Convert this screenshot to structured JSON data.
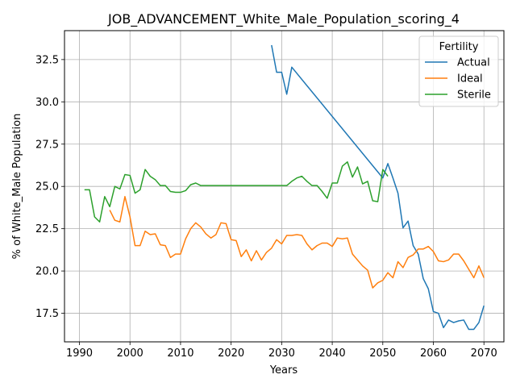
{
  "chart_data": {
    "type": "line",
    "title": "JOB_ADVANCEMENT_White_Male_Population_scoring_4",
    "xlabel": "Years",
    "ylabel": "% of White_Male Population",
    "xlim": [
      1987.05,
      2073.95
    ],
    "ylim": [
      15.81,
      34.21
    ],
    "xticks": [
      1990,
      2000,
      2010,
      2020,
      2030,
      2040,
      2050,
      2060,
      2070
    ],
    "xtick_labels": [
      "1990",
      "2000",
      "2010",
      "2020",
      "2030",
      "2040",
      "2050",
      "2060",
      "2070"
    ],
    "yticks": [
      17.5,
      20.0,
      22.5,
      25.0,
      27.5,
      30.0,
      32.5
    ],
    "ytick_labels": [
      "17.5",
      "20.0",
      "22.5",
      "25.0",
      "27.5",
      "30.0",
      "32.5"
    ],
    "grid": true,
    "legend": {
      "title": "Fertility",
      "position": "top-right"
    },
    "series": [
      {
        "name": "Actual",
        "color": "#1f77b4",
        "x": [
          2028,
          2029,
          2030,
          2031,
          2032,
          2050,
          2051,
          2052,
          2053,
          2054,
          2055,
          2056,
          2057,
          2058,
          2059,
          2060,
          2061,
          2062,
          2063,
          2064,
          2065,
          2066,
          2067,
          2068,
          2069,
          2070
        ],
        "y": [
          33.35,
          31.75,
          31.75,
          30.45,
          32.05,
          25.5,
          26.35,
          25.5,
          24.6,
          22.55,
          22.95,
          21.5,
          21.0,
          19.55,
          18.95,
          17.6,
          17.5,
          16.65,
          17.1,
          16.95,
          17.05,
          17.1,
          16.55,
          16.55,
          16.95,
          17.95
        ]
      },
      {
        "name": "Ideal",
        "color": "#ff7f0e",
        "x": [
          1996,
          1997,
          1998,
          1999,
          2000,
          2001,
          2002,
          2003,
          2004,
          2005,
          2006,
          2007,
          2008,
          2009,
          2010,
          2011,
          2012,
          2013,
          2014,
          2015,
          2016,
          2017,
          2018,
          2019,
          2020,
          2021,
          2022,
          2023,
          2024,
          2025,
          2026,
          2027,
          2028,
          2029,
          2030,
          2031,
          2032,
          2033,
          2034,
          2035,
          2036,
          2037,
          2038,
          2039,
          2040,
          2041,
          2042,
          2043,
          2044,
          2045,
          2046,
          2047,
          2048,
          2049,
          2050,
          2051,
          2052,
          2053,
          2054,
          2055,
          2056,
          2057,
          2058,
          2059,
          2060,
          2061,
          2062,
          2063,
          2064,
          2065,
          2066,
          2067,
          2068,
          2069,
          2070
        ],
        "y": [
          23.6,
          23.0,
          22.9,
          24.4,
          23.2,
          21.5,
          21.5,
          22.35,
          22.15,
          22.2,
          21.55,
          21.5,
          20.8,
          21.0,
          21.0,
          21.9,
          22.5,
          22.85,
          22.6,
          22.2,
          21.95,
          22.15,
          22.85,
          22.8,
          21.85,
          21.8,
          20.85,
          21.25,
          20.6,
          21.2,
          20.65,
          21.1,
          21.35,
          21.85,
          21.6,
          22.1,
          22.1,
          22.15,
          22.1,
          21.6,
          21.25,
          21.5,
          21.65,
          21.65,
          21.45,
          21.95,
          21.9,
          21.95,
          21.0,
          20.65,
          20.3,
          20.05,
          19.0,
          19.3,
          19.45,
          19.9,
          19.6,
          20.55,
          20.2,
          20.8,
          20.95,
          21.3,
          21.3,
          21.45,
          21.15,
          20.6,
          20.55,
          20.65,
          21.0,
          21.0,
          20.6,
          20.1,
          19.6,
          20.3,
          19.6
        ]
      },
      {
        "name": "Sterile",
        "color": "#2ca02c",
        "x": [
          1991,
          1992,
          1993,
          1994,
          1995,
          1996,
          1997,
          1998,
          1999,
          2000,
          2001,
          2002,
          2003,
          2004,
          2005,
          2006,
          2007,
          2008,
          2009,
          2010,
          2011,
          2012,
          2013,
          2014,
          2031,
          2032,
          2033,
          2034,
          2035,
          2036,
          2037,
          2038,
          2039,
          2040,
          2041,
          2042,
          2043,
          2044,
          2045,
          2046,
          2047,
          2048,
          2049,
          2050,
          2051
        ],
        "y": [
          24.8,
          24.8,
          23.2,
          22.9,
          24.4,
          23.8,
          25.0,
          24.85,
          25.7,
          25.65,
          24.6,
          24.8,
          26.0,
          25.6,
          25.4,
          25.05,
          25.05,
          24.7,
          24.65,
          24.65,
          24.75,
          25.1,
          25.2,
          25.05,
          25.05,
          25.3,
          25.5,
          25.6,
          25.3,
          25.05,
          25.05,
          24.7,
          24.3,
          25.2,
          25.2,
          26.2,
          26.45,
          25.55,
          26.15,
          25.15,
          25.3,
          24.15,
          24.1,
          26.0,
          25.6
        ]
      }
    ]
  }
}
